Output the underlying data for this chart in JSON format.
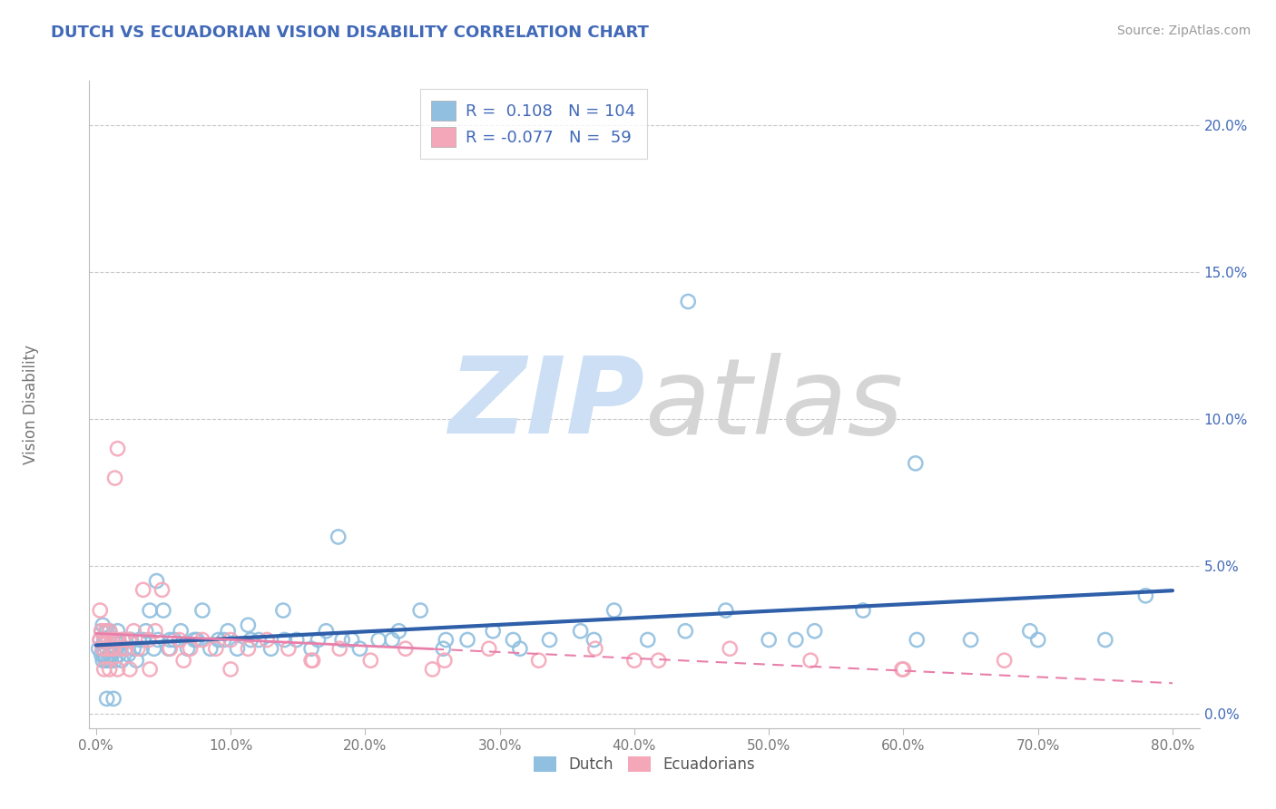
{
  "title": "DUTCH VS ECUADORIAN VISION DISABILITY CORRELATION CHART",
  "source": "Source: ZipAtlas.com",
  "ylabel": "Vision Disability",
  "xlim": [
    -0.005,
    0.82
  ],
  "ylim": [
    -0.005,
    0.215
  ],
  "xticks": [
    0.0,
    0.1,
    0.2,
    0.3,
    0.4,
    0.5,
    0.6,
    0.7,
    0.8
  ],
  "xticklabels": [
    "0.0%",
    "10.0%",
    "20.0%",
    "30.0%",
    "40.0%",
    "50.0%",
    "60.0%",
    "70.0%",
    "80.0%"
  ],
  "yticks": [
    0.0,
    0.05,
    0.1,
    0.15,
    0.2
  ],
  "yticklabels": [
    "0.0%",
    "5.0%",
    "10.0%",
    "15.0%",
    "20.0%"
  ],
  "dutch_R": 0.108,
  "dutch_N": 104,
  "ecuadorian_R": -0.077,
  "ecuadorian_N": 59,
  "dutch_color": "#90bfdf",
  "ecuadorian_color": "#f4a7b9",
  "dutch_line_color": "#2E5FA8",
  "ecuadorian_line_color": "#E87FAA",
  "legend_text_color": "#4169B8",
  "grid_color": "#c8c8c8",
  "background_color": "#ffffff",
  "title_color": "#4169B8",
  "dutch_x": [
    0.002,
    0.003,
    0.004,
    0.004,
    0.005,
    0.005,
    0.005,
    0.006,
    0.006,
    0.007,
    0.007,
    0.008,
    0.008,
    0.009,
    0.009,
    0.01,
    0.01,
    0.011,
    0.011,
    0.012,
    0.012,
    0.013,
    0.014,
    0.014,
    0.015,
    0.016,
    0.017,
    0.018,
    0.019,
    0.02,
    0.022,
    0.024,
    0.026,
    0.028,
    0.03,
    0.032,
    0.034,
    0.037,
    0.04,
    0.043,
    0.046,
    0.05,
    0.054,
    0.058,
    0.063,
    0.068,
    0.073,
    0.079,
    0.085,
    0.091,
    0.098,
    0.105,
    0.113,
    0.121,
    0.13,
    0.139,
    0.149,
    0.16,
    0.171,
    0.183,
    0.196,
    0.21,
    0.225,
    0.241,
    0.258,
    0.276,
    0.295,
    0.315,
    0.337,
    0.36,
    0.385,
    0.41,
    0.438,
    0.468,
    0.5,
    0.534,
    0.57,
    0.609,
    0.65,
    0.694,
    0.015,
    0.025,
    0.035,
    0.055,
    0.075,
    0.095,
    0.115,
    0.14,
    0.165,
    0.19,
    0.22,
    0.26,
    0.31,
    0.37,
    0.44,
    0.52,
    0.61,
    0.7,
    0.75,
    0.78,
    0.008,
    0.013,
    0.045,
    0.18
  ],
  "dutch_y": [
    0.022,
    0.025,
    0.02,
    0.028,
    0.018,
    0.022,
    0.03,
    0.02,
    0.025,
    0.018,
    0.025,
    0.022,
    0.028,
    0.018,
    0.025,
    0.02,
    0.028,
    0.022,
    0.018,
    0.025,
    0.02,
    0.022,
    0.018,
    0.025,
    0.022,
    0.028,
    0.02,
    0.022,
    0.018,
    0.025,
    0.022,
    0.02,
    0.025,
    0.022,
    0.018,
    0.025,
    0.022,
    0.028,
    0.035,
    0.022,
    0.025,
    0.035,
    0.022,
    0.025,
    0.028,
    0.022,
    0.025,
    0.035,
    0.022,
    0.025,
    0.028,
    0.022,
    0.03,
    0.025,
    0.022,
    0.035,
    0.025,
    0.022,
    0.028,
    0.025,
    0.022,
    0.025,
    0.028,
    0.035,
    0.022,
    0.025,
    0.028,
    0.022,
    0.025,
    0.028,
    0.035,
    0.025,
    0.028,
    0.035,
    0.025,
    0.028,
    0.035,
    0.085,
    0.025,
    0.028,
    0.025,
    0.025,
    0.025,
    0.025,
    0.025,
    0.025,
    0.025,
    0.025,
    0.025,
    0.025,
    0.025,
    0.025,
    0.025,
    0.025,
    0.14,
    0.025,
    0.025,
    0.025,
    0.025,
    0.04,
    0.005,
    0.005,
    0.045,
    0.06
  ],
  "ecuadorian_x": [
    0.003,
    0.004,
    0.005,
    0.006,
    0.007,
    0.008,
    0.009,
    0.01,
    0.011,
    0.012,
    0.013,
    0.014,
    0.015,
    0.016,
    0.017,
    0.018,
    0.02,
    0.022,
    0.025,
    0.028,
    0.031,
    0.035,
    0.039,
    0.044,
    0.049,
    0.055,
    0.062,
    0.07,
    0.079,
    0.089,
    0.1,
    0.113,
    0.127,
    0.143,
    0.161,
    0.181,
    0.204,
    0.23,
    0.259,
    0.292,
    0.329,
    0.371,
    0.418,
    0.471,
    0.531,
    0.599,
    0.675,
    0.003,
    0.006,
    0.01,
    0.016,
    0.025,
    0.04,
    0.065,
    0.1,
    0.16,
    0.25,
    0.4,
    0.6,
    0.003
  ],
  "ecuadorian_y": [
    0.025,
    0.028,
    0.022,
    0.025,
    0.028,
    0.022,
    0.025,
    0.028,
    0.022,
    0.025,
    0.022,
    0.08,
    0.025,
    0.09,
    0.025,
    0.022,
    0.025,
    0.022,
    0.025,
    0.028,
    0.022,
    0.042,
    0.025,
    0.028,
    0.042,
    0.022,
    0.025,
    0.022,
    0.025,
    0.022,
    0.025,
    0.022,
    0.025,
    0.022,
    0.018,
    0.022,
    0.018,
    0.022,
    0.018,
    0.022,
    0.018,
    0.022,
    0.018,
    0.022,
    0.018,
    0.015,
    0.018,
    0.035,
    0.015,
    0.015,
    0.015,
    0.015,
    0.015,
    0.018,
    0.015,
    0.018,
    0.015,
    0.018,
    0.015,
    0.025
  ]
}
